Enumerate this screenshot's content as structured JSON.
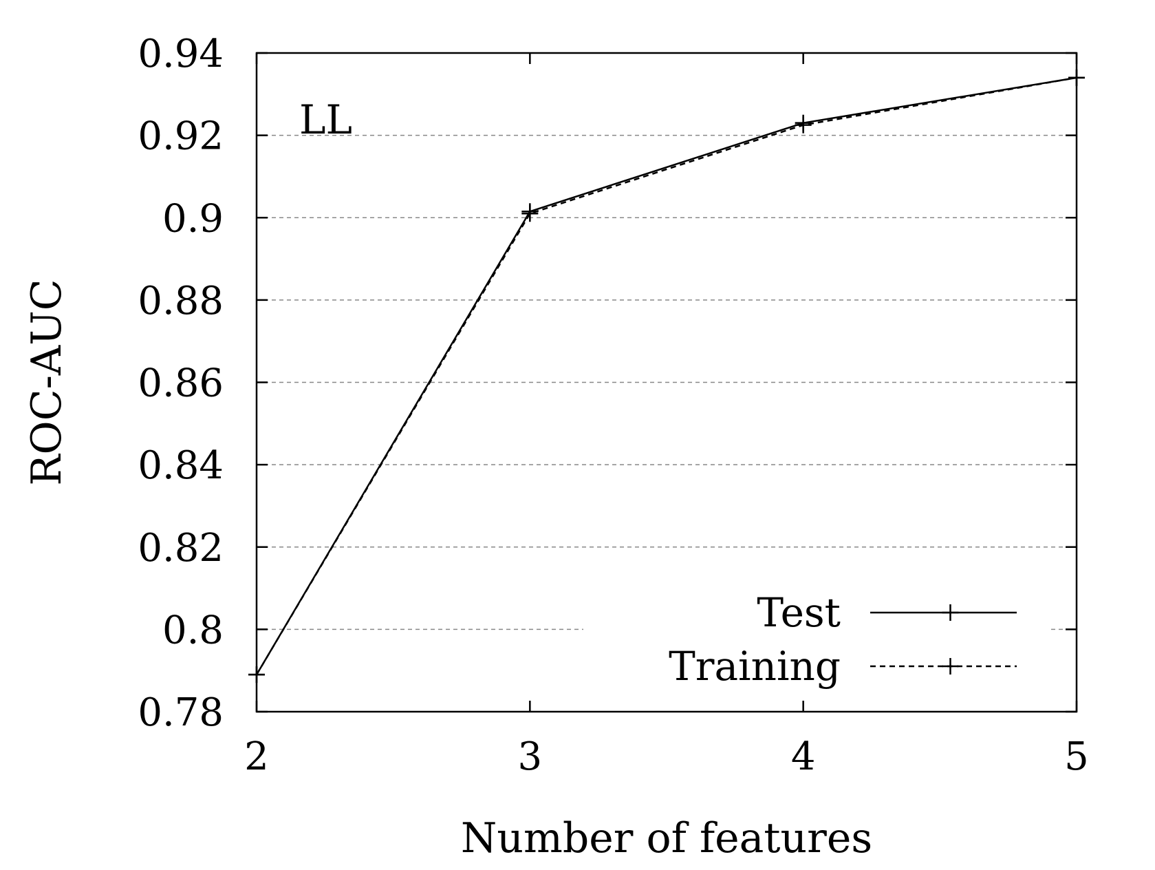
{
  "chart_data": {
    "type": "line",
    "title": "",
    "annotation": "LL",
    "xlabel": "Number of features",
    "ylabel": "ROC-AUC",
    "xlim": [
      2,
      5
    ],
    "ylim": [
      0.78,
      0.94
    ],
    "x_ticks": [
      "2",
      "3",
      "4",
      "5"
    ],
    "y_ticks": [
      "0.78",
      "0.8",
      "0.82",
      "0.84",
      "0.86",
      "0.88",
      "0.9",
      "0.92",
      "0.94"
    ],
    "grid": "horizontal dashed",
    "legend_position": "bottom-right",
    "x": [
      2,
      3,
      4,
      5
    ],
    "series": [
      {
        "name": "Test",
        "values": [
          0.789,
          0.9015,
          0.923,
          0.934
        ],
        "style": "solid",
        "marker": "plus",
        "color": "#000000"
      },
      {
        "name": "Training",
        "values": [
          0.789,
          0.901,
          0.9225,
          0.934
        ],
        "style": "dashed",
        "marker": "plus",
        "color": "#000000"
      }
    ]
  }
}
